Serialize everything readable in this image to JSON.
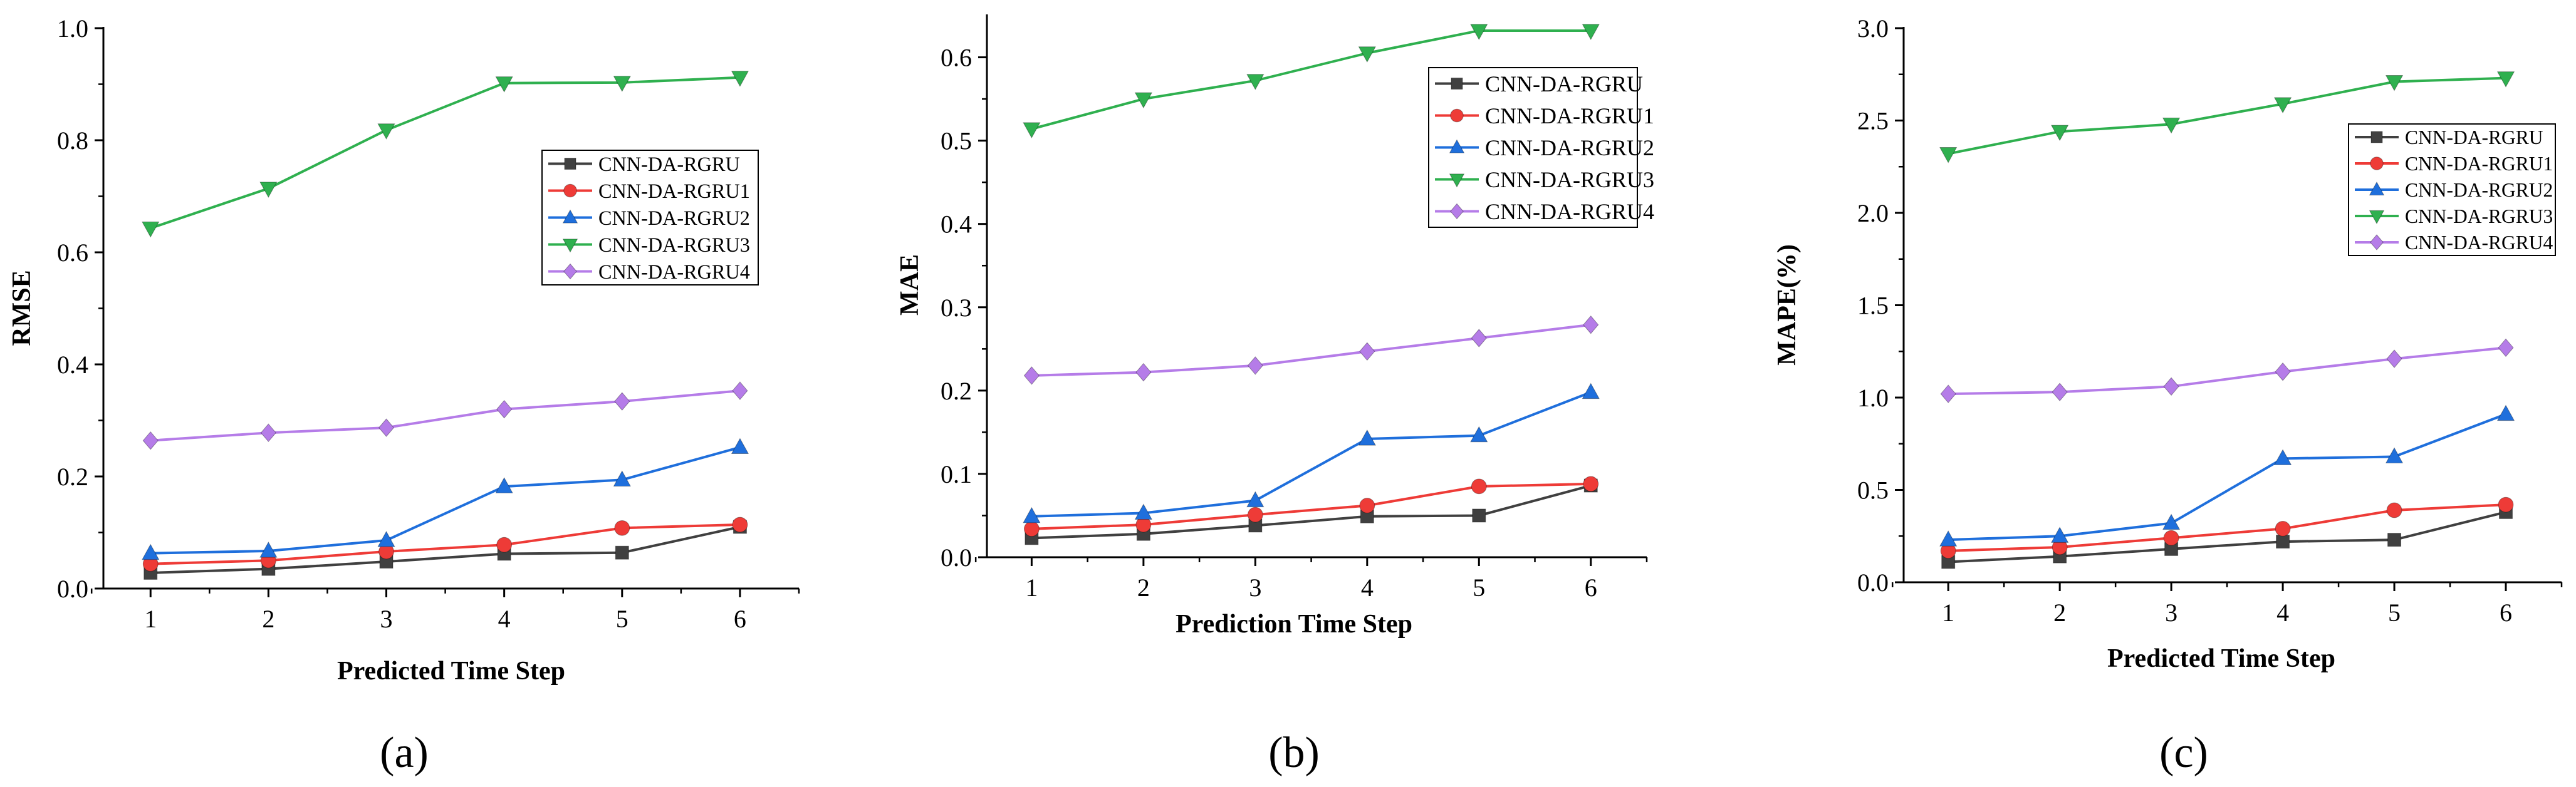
{
  "chart_data": [
    {
      "type": "line",
      "panel_label": "(a)",
      "xlabel": "Predicted Time Step",
      "ylabel": "RMSE",
      "x": [
        1,
        2,
        3,
        4,
        5,
        6
      ],
      "xlim": [
        0.6,
        6.5
      ],
      "ylim": [
        0,
        1.0
      ],
      "yticks": [
        0.0,
        0.2,
        0.4,
        0.6,
        0.8,
        1.0
      ],
      "ytick_labels": [
        "0.0",
        "0.2",
        "0.4",
        "0.6",
        "0.8",
        "1.0"
      ],
      "legend_position": "center-right",
      "series": [
        {
          "name": "CNN-DA-RGRU",
          "color": "#404040",
          "marker": "square",
          "values": [
            0.028,
            0.035,
            0.048,
            0.062,
            0.064,
            0.11
          ]
        },
        {
          "name": "CNN-DA-RGRU1",
          "color": "#ee3b37",
          "marker": "circle",
          "values": [
            0.044,
            0.05,
            0.066,
            0.078,
            0.108,
            0.114
          ]
        },
        {
          "name": "CNN-DA-RGRU2",
          "color": "#1f6fdc",
          "marker": "triangle-up",
          "values": [
            0.063,
            0.067,
            0.086,
            0.182,
            0.194,
            0.252
          ]
        },
        {
          "name": "CNN-DA-RGRU3",
          "color": "#2fb04f",
          "marker": "triangle-down",
          "values": [
            0.643,
            0.714,
            0.818,
            0.902,
            0.903,
            0.912
          ]
        },
        {
          "name": "CNN-DA-RGRU4",
          "color": "#b57ce8",
          "marker": "diamond",
          "values": [
            0.264,
            0.278,
            0.287,
            0.32,
            0.334,
            0.353
          ]
        }
      ]
    },
    {
      "type": "line",
      "panel_label": "(b)",
      "xlabel": "Prediction Time Step",
      "ylabel": "MAE",
      "x": [
        1,
        2,
        3,
        4,
        5,
        6
      ],
      "xlim": [
        0.6,
        6.5
      ],
      "ylim": [
        0,
        0.65
      ],
      "yticks": [
        0.0,
        0.1,
        0.2,
        0.3,
        0.4,
        0.5,
        0.6
      ],
      "ytick_labels": [
        "0.0",
        "0.1",
        "0.2",
        "0.3",
        "0.4",
        "0.5",
        "0.6"
      ],
      "legend_position": "top-right",
      "series": [
        {
          "name": "CNN-DA-RGRU",
          "color": "#404040",
          "marker": "square",
          "values": [
            0.023,
            0.028,
            0.038,
            0.049,
            0.05,
            0.086
          ]
        },
        {
          "name": "CNN-DA-RGRU1",
          "color": "#ee3b37",
          "marker": "circle",
          "values": [
            0.034,
            0.039,
            0.051,
            0.062,
            0.085,
            0.088
          ]
        },
        {
          "name": "CNN-DA-RGRU2",
          "color": "#1f6fdc",
          "marker": "triangle-up",
          "values": [
            0.049,
            0.053,
            0.068,
            0.142,
            0.146,
            0.198
          ]
        },
        {
          "name": "CNN-DA-RGRU3",
          "color": "#2fb04f",
          "marker": "triangle-down",
          "values": [
            0.514,
            0.55,
            0.572,
            0.605,
            0.632,
            0.632
          ]
        },
        {
          "name": "CNN-DA-RGRU4",
          "color": "#b57ce8",
          "marker": "diamond",
          "values": [
            0.218,
            0.222,
            0.23,
            0.247,
            0.263,
            0.279
          ]
        }
      ]
    },
    {
      "type": "line",
      "panel_label": "(c)",
      "xlabel": "Predicted Time Step",
      "ylabel": "MAPE(%)",
      "x": [
        1,
        2,
        3,
        4,
        5,
        6
      ],
      "xlim": [
        0.6,
        6.5
      ],
      "ylim": [
        0,
        3.0
      ],
      "yticks": [
        0.0,
        0.5,
        1.0,
        1.5,
        2.0,
        2.5,
        3.0
      ],
      "ytick_labels": [
        "0.0",
        "0.5",
        "1.0",
        "1.5",
        "2.0",
        "2.5",
        "3.0"
      ],
      "legend_position": "top-right",
      "series": [
        {
          "name": "CNN-DA-RGRU",
          "color": "#404040",
          "marker": "square",
          "values": [
            0.11,
            0.14,
            0.18,
            0.22,
            0.23,
            0.38
          ]
        },
        {
          "name": "CNN-DA-RGRU1",
          "color": "#ee3b37",
          "marker": "circle",
          "values": [
            0.17,
            0.19,
            0.24,
            0.29,
            0.39,
            0.42
          ]
        },
        {
          "name": "CNN-DA-RGRU2",
          "color": "#1f6fdc",
          "marker": "triangle-up",
          "values": [
            0.23,
            0.25,
            0.32,
            0.67,
            0.68,
            0.91
          ]
        },
        {
          "name": "CNN-DA-RGRU3",
          "color": "#2fb04f",
          "marker": "triangle-down",
          "values": [
            2.32,
            2.44,
            2.48,
            2.59,
            2.71,
            2.73
          ]
        },
        {
          "name": "CNN-DA-RGRU4",
          "color": "#b57ce8",
          "marker": "diamond",
          "values": [
            1.02,
            1.03,
            1.06,
            1.14,
            1.21,
            1.27
          ]
        }
      ]
    }
  ]
}
